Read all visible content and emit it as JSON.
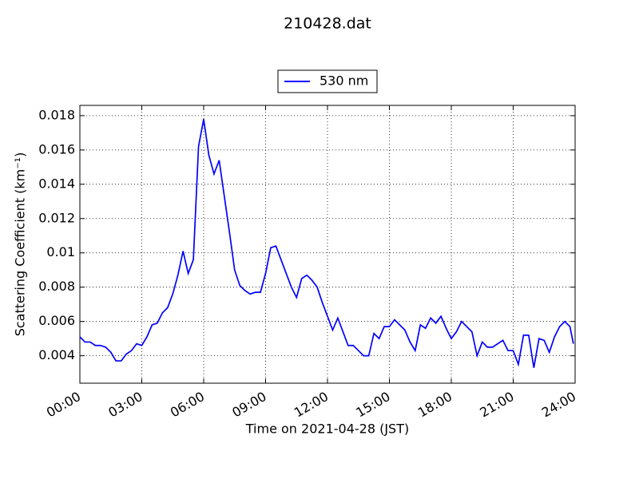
{
  "chart_data": {
    "type": "line",
    "title": "210428.dat",
    "xlabel": "Time on 2021-04-28 (JST)",
    "ylabel": "Scattering Coefficient (km⁻¹)",
    "x": [
      "00:00",
      "00:15",
      "00:30",
      "00:45",
      "01:00",
      "01:15",
      "01:30",
      "01:45",
      "02:00",
      "02:15",
      "02:30",
      "02:45",
      "03:00",
      "03:15",
      "03:30",
      "03:45",
      "04:00",
      "04:15",
      "04:30",
      "04:45",
      "05:00",
      "05:15",
      "05:30",
      "05:45",
      "06:00",
      "06:15",
      "06:30",
      "06:45",
      "07:00",
      "07:15",
      "07:30",
      "07:45",
      "08:00",
      "08:15",
      "08:30",
      "08:45",
      "09:00",
      "09:15",
      "09:30",
      "09:45",
      "10:00",
      "10:15",
      "10:30",
      "10:45",
      "11:00",
      "11:15",
      "11:30",
      "11:45",
      "12:00",
      "12:15",
      "12:30",
      "12:45",
      "13:00",
      "13:15",
      "13:30",
      "13:45",
      "14:00",
      "14:15",
      "14:30",
      "14:45",
      "15:00",
      "15:15",
      "15:30",
      "15:45",
      "16:00",
      "16:15",
      "16:30",
      "16:45",
      "17:00",
      "17:15",
      "17:30",
      "17:45",
      "18:00",
      "18:15",
      "18:30",
      "18:45",
      "19:00",
      "19:15",
      "19:30",
      "19:45",
      "20:00",
      "20:15",
      "20:30",
      "20:45",
      "21:00",
      "21:15",
      "21:30",
      "21:45",
      "22:00",
      "22:15",
      "22:30",
      "22:45",
      "23:00",
      "23:15",
      "23:30",
      "23:45",
      "23:55"
    ],
    "series": [
      {
        "name": "530 nm",
        "color": "#0000ff",
        "values": [
          0.0051,
          0.0048,
          0.0048,
          0.0046,
          0.0046,
          0.0045,
          0.0042,
          0.0037,
          0.0037,
          0.0041,
          0.0043,
          0.0047,
          0.0046,
          0.0051,
          0.0058,
          0.0059,
          0.0065,
          0.0068,
          0.0076,
          0.0087,
          0.0101,
          0.0088,
          0.0096,
          0.0162,
          0.0178,
          0.0157,
          0.0146,
          0.0154,
          0.0133,
          0.0112,
          0.009,
          0.0081,
          0.0078,
          0.0076,
          0.0077,
          0.0077,
          0.0088,
          0.0103,
          0.0104,
          0.0096,
          0.0088,
          0.008,
          0.0074,
          0.0085,
          0.0087,
          0.0084,
          0.008,
          0.0071,
          0.0063,
          0.0055,
          0.0062,
          0.0054,
          0.0046,
          0.0046,
          0.0043,
          0.004,
          0.004,
          0.0053,
          0.005,
          0.0057,
          0.0057,
          0.0061,
          0.0058,
          0.0055,
          0.0048,
          0.0043,
          0.0058,
          0.0056,
          0.0062,
          0.0059,
          0.0063,
          0.0056,
          0.005,
          0.0054,
          0.006,
          0.0057,
          0.0054,
          0.004,
          0.0048,
          0.0045,
          0.0045,
          0.0047,
          0.0049,
          0.0043,
          0.0043,
          0.0035,
          0.0052,
          0.0052,
          0.0033,
          0.005,
          0.0049,
          0.0042,
          0.0051,
          0.0057,
          0.006,
          0.0057,
          0.0047
        ]
      }
    ],
    "xlim": [
      "00:00",
      "24:00"
    ],
    "xticks": [
      "00:00",
      "03:00",
      "06:00",
      "09:00",
      "12:00",
      "15:00",
      "18:00",
      "21:00",
      "24:00"
    ],
    "ylim": [
      0.0024,
      0.0186
    ],
    "yticks": [
      0.004,
      0.006,
      0.008,
      0.01,
      0.012,
      0.014,
      0.016,
      0.018
    ],
    "grid": true,
    "legend": "top"
  }
}
